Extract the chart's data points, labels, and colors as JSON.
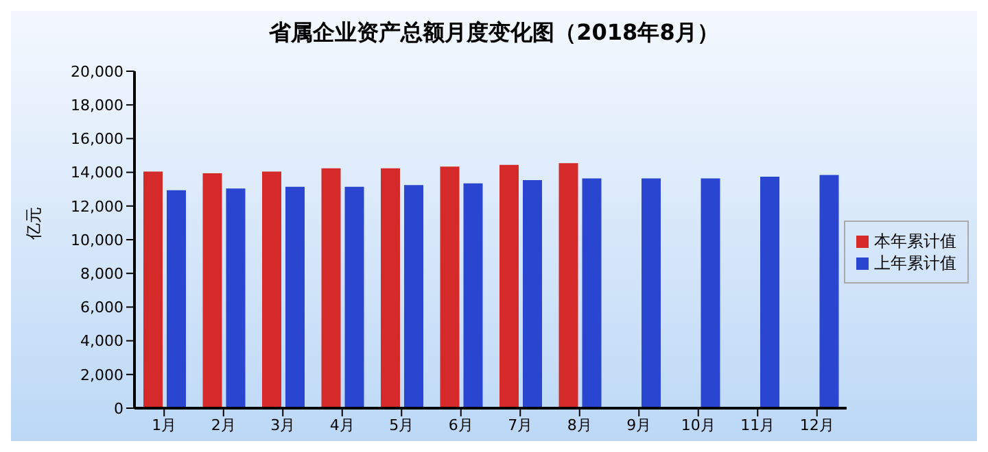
{
  "chart_data": {
    "type": "bar",
    "title": "省属企业资产总额月度变化图（2018年8月）",
    "ylabel": "亿元",
    "categories": [
      "1月",
      "2月",
      "3月",
      "4月",
      "5月",
      "6月",
      "7月",
      "8月",
      "9月",
      "10月",
      "11月",
      "12月"
    ],
    "series": [
      {
        "name": "本年累计值",
        "color": "#d42a2a",
        "values": [
          14000,
          13900,
          14000,
          14200,
          14200,
          14300,
          14400,
          14500,
          null,
          null,
          null,
          null
        ]
      },
      {
        "name": "上年累计值",
        "color": "#2a46d0",
        "values": [
          12900,
          13000,
          13100,
          13100,
          13200,
          13300,
          13500,
          13600,
          13600,
          13600,
          13700,
          13800
        ]
      }
    ],
    "ylim": [
      0,
      20000
    ],
    "yticks": [
      0,
      {
        "value": 2000,
        "label": "2,000"
      },
      {
        "value": 4000,
        "label": "4,000"
      },
      {
        "value": 6000,
        "label": "6,000"
      },
      {
        "value": 8000,
        "label": "8,000"
      },
      {
        "value": 10000,
        "label": "10,000"
      },
      {
        "value": 12000,
        "label": "12,000"
      },
      {
        "value": 14000,
        "label": "14,000"
      },
      {
        "value": 16000,
        "label": "16,000"
      },
      {
        "value": 18000,
        "label": "18,000"
      },
      {
        "value": 20000,
        "label": "20,000"
      }
    ],
    "grid": false,
    "legend": "right"
  }
}
